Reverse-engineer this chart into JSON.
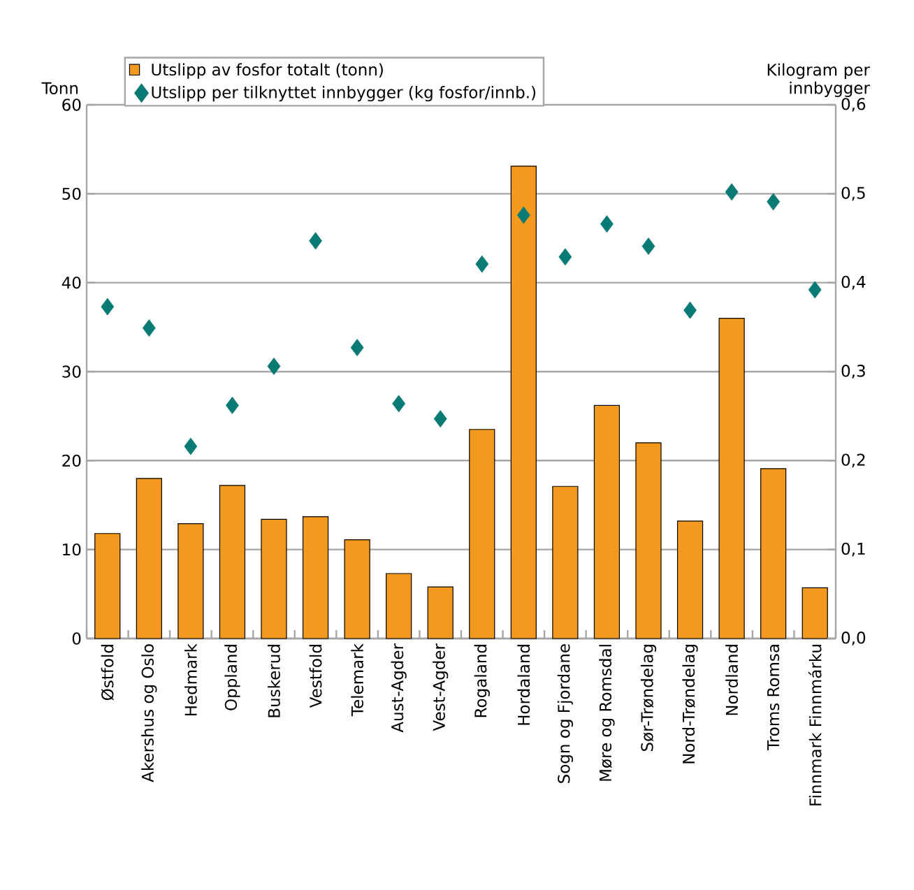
{
  "chart_data": {
    "type": "bar",
    "ylabel": "Tonn",
    "y2label": "Kilogram per innbygger",
    "categories": [
      "Østfold",
      "Akershus og Oslo",
      "Hedmark",
      "Oppland",
      "Buskerud",
      "Vestfold",
      "Telemark",
      "Aust-Agder",
      "Vest-Agder",
      "Rogaland",
      "Hordaland",
      "Sogn og Fjordane",
      "Møre og Romsdal",
      "Sør-Trøndelag",
      "Nord-Trøndelag",
      "Nordland",
      "Troms Romsa",
      "Finnmark Finnmárku"
    ],
    "series": [
      {
        "name": "Utslipp av fosfor totalt (tonn)",
        "color": "#f39a1e",
        "values": [
          11.8,
          18.0,
          12.9,
          17.2,
          13.4,
          13.7,
          11.1,
          7.3,
          5.8,
          23.5,
          53.1,
          17.1,
          26.2,
          22.0,
          13.2,
          36.0,
          19.1,
          5.7
        ]
      },
      {
        "name": "Utslipp per tilknyttet innbygger (kg fosfor/innb.)",
        "type": "scatter",
        "axis": "y2",
        "marker": "diamond",
        "color": "#0a7a74",
        "values": [
          0.373,
          0.349,
          0.216,
          0.262,
          0.306,
          0.447,
          0.327,
          0.264,
          0.247,
          0.421,
          0.476,
          0.429,
          0.466,
          0.441,
          0.369,
          0.502,
          0.491,
          0.392
        ]
      }
    ],
    "ylim": [
      0,
      60
    ],
    "yticks": [
      0,
      10,
      20,
      30,
      40,
      50,
      60
    ],
    "y2lim": [
      0,
      0.6
    ],
    "y2ticks": [
      {
        "value": 0,
        "label": "0,0"
      },
      {
        "value": 0.1,
        "label": "0,1"
      },
      {
        "value": 0.2,
        "label": "0,2"
      },
      {
        "value": 0.3,
        "label": "0,3"
      },
      {
        "value": 0.4,
        "label": "0,4"
      },
      {
        "value": 0.5,
        "label": "0,5"
      },
      {
        "value": 0.6,
        "label": "0,6"
      }
    ],
    "grid": "y",
    "legend": "top left"
  }
}
